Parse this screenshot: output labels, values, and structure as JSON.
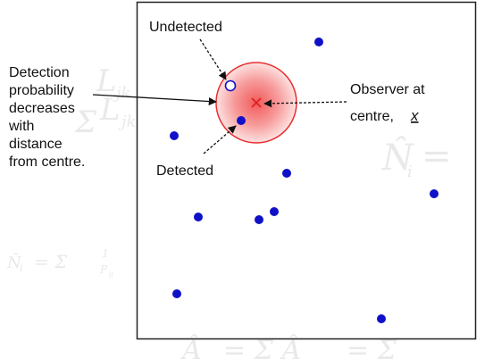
{
  "diagram": {
    "labels": {
      "undetected": "Undetected",
      "detected": "Detected",
      "observer_line1": "Observer at",
      "observer_line2": "centre,",
      "observer_symbol": "x",
      "detection_lines": [
        "Detection",
        "probability",
        "decreases",
        "with",
        "distance",
        "from centre."
      ]
    },
    "watermarks": [
      "L",
      "jk",
      "Σ",
      "L",
      "jk",
      "N̂",
      "i",
      "=",
      "N̂",
      "i",
      "= Σ",
      "1",
      "P",
      "ij",
      "Â",
      "= Σ Â",
      "= Σ"
    ],
    "colors": {
      "detected_dot": "#1010c8",
      "undetected_ring": "#1010c8",
      "circle_stroke": "#e83030",
      "circle_fill_center": "#f06060",
      "circle_fill_edge": "#fde0e0",
      "observer_mark": "#e02020",
      "frame": "#222222"
    }
  }
}
